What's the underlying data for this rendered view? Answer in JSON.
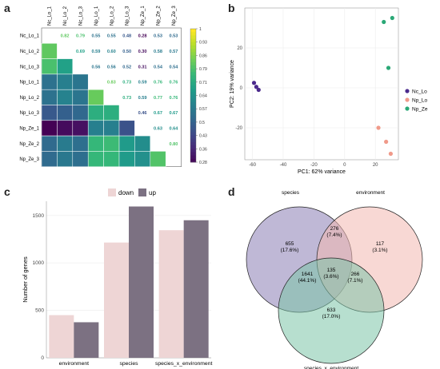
{
  "panels": {
    "a": "a",
    "b": "b",
    "c": "c",
    "d": "d"
  },
  "chart_data": [
    {
      "type": "heatmap",
      "labels": [
        "Nc_Lo_1",
        "Nc_Lo_2",
        "Nc_Lo_3",
        "Np_Lo_1",
        "Np_Lo_2",
        "Np_Lo_3",
        "Np_Ze_1",
        "Np_Ze_2",
        "Np_Ze_3"
      ],
      "upper_values": [
        [
          null,
          0.82,
          0.79,
          0.55,
          0.55,
          0.48,
          0.28,
          0.53,
          0.53
        ],
        [
          null,
          null,
          0.69,
          0.59,
          0.6,
          0.5,
          0.3,
          0.58,
          0.57
        ],
        [
          null,
          null,
          null,
          0.56,
          0.56,
          0.52,
          0.31,
          0.54,
          0.54
        ],
        [
          null,
          null,
          null,
          null,
          0.83,
          0.73,
          0.59,
          0.76,
          0.76
        ],
        [
          null,
          null,
          null,
          null,
          null,
          0.73,
          0.59,
          0.77,
          0.76
        ],
        [
          null,
          null,
          null,
          null,
          null,
          null,
          0.46,
          0.67,
          0.67
        ],
        [
          null,
          null,
          null,
          null,
          null,
          null,
          null,
          0.63,
          0.64
        ],
        [
          null,
          null,
          null,
          null,
          null,
          null,
          null,
          null,
          0.8
        ],
        [
          null,
          null,
          null,
          null,
          null,
          null,
          null,
          null,
          null
        ]
      ],
      "upper_labels": [
        [
          null,
          "0.82",
          "0.79",
          "0.55",
          "0.55",
          "0.48",
          "0.28",
          "0.53",
          "0.53"
        ],
        [
          null,
          null,
          "0.69",
          "0.59",
          "0.60",
          "0.50",
          "0.30",
          "0.58",
          "0.57"
        ],
        [
          null,
          null,
          null,
          "0.56",
          "0.56",
          "0.52",
          "0.31",
          "0.54",
          "0.54"
        ],
        [
          null,
          null,
          null,
          null,
          "0.83",
          "0.73",
          "0.59",
          "0.76",
          "0.76"
        ],
        [
          null,
          null,
          null,
          null,
          null,
          "0.73",
          "0.59",
          "0.77",
          "0.76"
        ],
        [
          null,
          null,
          null,
          null,
          null,
          null,
          "0.46",
          "0.67",
          "0.67"
        ],
        [
          null,
          null,
          null,
          null,
          null,
          null,
          null,
          "0.63",
          "0.64"
        ],
        [
          null,
          null,
          null,
          null,
          null,
          null,
          null,
          null,
          "0.80"
        ],
        [
          null,
          null,
          null,
          null,
          null,
          null,
          null,
          null,
          null
        ]
      ],
      "colorbar": {
        "min": 0.28,
        "max": 1,
        "ticks": [
          "1",
          "0.93",
          "0.86",
          "0.79",
          "0.71",
          "0.64",
          "0.57",
          "0.5",
          "0.43",
          "0.36",
          "0.28"
        ]
      }
    },
    {
      "type": "scatter",
      "xlabel": "PC1: 62% variance",
      "ylabel": "PC2: 19% variance",
      "xlim": [
        -65,
        35
      ],
      "ylim": [
        -36,
        40
      ],
      "xticks": [
        -60,
        -40,
        -20,
        0,
        20
      ],
      "yticks": [
        -20,
        0,
        20
      ],
      "grid": true,
      "legend_position": "right",
      "series": [
        {
          "name": "Nc_Lo",
          "color": "#4b2a8c",
          "points": [
            [
              -59,
              2.5
            ],
            [
              -57.5,
              0.5
            ],
            [
              -56,
              -1
            ]
          ]
        },
        {
          "name": "Np_Lo",
          "color": "#f09a8a",
          "points": [
            [
              22,
              -20
            ],
            [
              27,
              -27
            ],
            [
              30,
              -33
            ]
          ]
        },
        {
          "name": "Np_Ze",
          "color": "#2aa876",
          "points": [
            [
              25.5,
              33
            ],
            [
              28.5,
              10
            ],
            [
              31,
              35
            ]
          ]
        }
      ]
    },
    {
      "type": "bar",
      "ylabel": "Number of genes",
      "xlabel": "",
      "categories": [
        "environment",
        "species",
        "species_x_environment"
      ],
      "ylim": [
        0,
        1650
      ],
      "yticks": [
        0,
        500,
        1000,
        1500
      ],
      "grid": true,
      "legend_position": "top",
      "series": [
        {
          "name": "down",
          "color": "#eed5d5",
          "values": [
            450,
            1215,
            1345
          ]
        },
        {
          "name": "up",
          "color": "#7c7182",
          "values": [
            375,
            1595,
            1450
          ]
        }
      ]
    },
    {
      "type": "venn",
      "sets": [
        {
          "name": "species",
          "color": "#8a7db4"
        },
        {
          "name": "environment",
          "color": "#f3b8b0"
        },
        {
          "name": "species_x_environment",
          "color": "#7cc4a8"
        }
      ],
      "regions": [
        {
          "sets": [
            "species"
          ],
          "count": "655",
          "pct": "(17.6%)"
        },
        {
          "sets": [
            "environment"
          ],
          "count": "117",
          "pct": "(3.1%)"
        },
        {
          "sets": [
            "species_x_environment"
          ],
          "count": "633",
          "pct": "(17.0%)"
        },
        {
          "sets": [
            "species",
            "environment"
          ],
          "count": "276",
          "pct": "(7.4%)"
        },
        {
          "sets": [
            "species",
            "species_x_environment"
          ],
          "count": "1641",
          "pct": "(44.1%)"
        },
        {
          "sets": [
            "environment",
            "species_x_environment"
          ],
          "count": "266",
          "pct": "(7.1%)"
        },
        {
          "sets": [
            "species",
            "environment",
            "species_x_environment"
          ],
          "count": "135",
          "pct": "(3.6%)"
        }
      ]
    }
  ]
}
